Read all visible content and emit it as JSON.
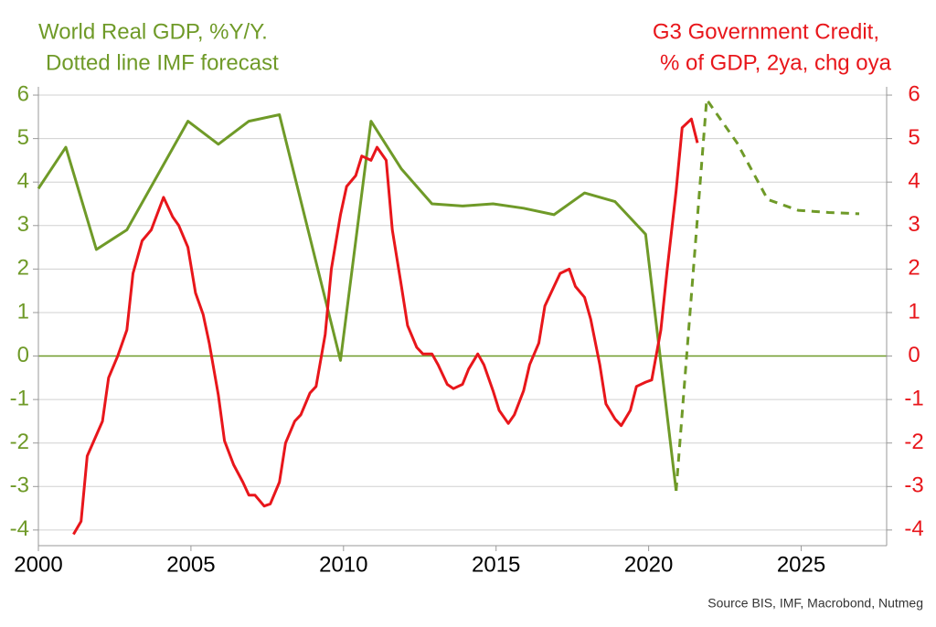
{
  "chart_data": {
    "type": "line",
    "y_label": [
      "World Real GDP, %Y/Y.",
      "Dotted line IMF forecast"
    ],
    "y2_label": [
      "G3 Government Credit,",
      "% of GDP, 2ya, chg oya"
    ],
    "source": "Source BIS, IMF, Macrobond, Nutmeg",
    "y_color": "#6f9a28",
    "y2_color": "#e8161b",
    "xlim": [
      2000,
      2027.8
    ],
    "xticks": [
      2000,
      2005,
      2010,
      2015,
      2020,
      2025
    ],
    "ylim": [
      -4.36,
      6.19
    ],
    "yticks": [
      -4,
      -3,
      -2,
      -1,
      0,
      1,
      2,
      3,
      4,
      5,
      6
    ],
    "y2lim": [
      -4.36,
      6.19
    ],
    "y2ticks": [
      -4,
      -3,
      -2,
      -1,
      0,
      1,
      2,
      3,
      4,
      5,
      6
    ],
    "grid": true,
    "zero_line_color": "#6f9a28",
    "series": [
      {
        "color": "#6f9a28",
        "style": "solid",
        "x": [
          2000,
          2000.9,
          2001.9,
          2002.9,
          2004.9,
          2005.9,
          2006.9,
          2007.9,
          2009.9,
          2010.9,
          2011.9,
          2012.9,
          2013.9,
          2014.9,
          2015.9,
          2016.9,
          2017.9,
          2018.9,
          2019.9,
          2020.9
        ],
        "values": [
          3.85,
          4.8,
          2.45,
          2.9,
          5.4,
          4.87,
          5.4,
          5.55,
          -0.1,
          5.4,
          4.3,
          3.5,
          3.45,
          3.5,
          3.4,
          3.25,
          3.75,
          3.55,
          2.8,
          -3.1
        ]
      },
      {
        "color": "#6f9a28",
        "style": "dashed",
        "x": [
          2020.9,
          2021.9,
          2022.9,
          2023.9,
          2024.9,
          2025.9,
          2026.9
        ],
        "values": [
          -3.1,
          5.9,
          4.9,
          3.6,
          3.35,
          3.3,
          3.27
        ]
      },
      {
        "color": "#e8161b",
        "style": "solid",
        "axis": "y2",
        "x": [
          2001.15,
          2001.4,
          2001.6,
          2002.1,
          2002.3,
          2002.6,
          2002.9,
          2003.1,
          2003.4,
          2003.7,
          2004.1,
          2004.4,
          2004.6,
          2004.9,
          2005.15,
          2005.4,
          2005.6,
          2005.9,
          2006.1,
          2006.4,
          2006.7,
          2006.9,
          2007.1,
          2007.4,
          2007.6,
          2007.9,
          2008.1,
          2008.4,
          2008.6,
          2008.9,
          2009.1,
          2009.4,
          2009.6,
          2009.9,
          2010.1,
          2010.4,
          2010.6,
          2010.9,
          2011.1,
          2011.4,
          2011.6,
          2011.9,
          2012.1,
          2012.4,
          2012.6,
          2012.9,
          2013.1,
          2013.4,
          2013.6,
          2013.9,
          2014.1,
          2014.4,
          2014.6,
          2014.9,
          2015.1,
          2015.4,
          2015.6,
          2015.9,
          2016.1,
          2016.4,
          2016.6,
          2016.9,
          2017.1,
          2017.4,
          2017.6,
          2017.9,
          2018.1,
          2018.4,
          2018.6,
          2018.9,
          2019.1,
          2019.4,
          2019.6,
          2019.9,
          2020.1,
          2020.4,
          2020.6,
          2020.9,
          2021.1,
          2021.4,
          2021.6
        ],
        "values": [
          -4.1,
          -3.8,
          -2.3,
          -1.5,
          -0.5,
          0,
          0.6,
          1.9,
          2.65,
          2.9,
          3.65,
          3.2,
          3.0,
          2.5,
          1.45,
          0.95,
          0.3,
          -0.9,
          -1.95,
          -2.5,
          -2.9,
          -3.2,
          -3.2,
          -3.45,
          -3.4,
          -2.9,
          -2.0,
          -1.5,
          -1.35,
          -0.85,
          -0.7,
          0.5,
          2.0,
          3.25,
          3.9,
          4.15,
          4.6,
          4.5,
          4.8,
          4.5,
          2.9,
          1.6,
          0.7,
          0.2,
          0.05,
          0.05,
          -0.2,
          -0.65,
          -0.75,
          -0.65,
          -0.3,
          0.05,
          -0.2,
          -0.8,
          -1.25,
          -1.55,
          -1.35,
          -0.8,
          -0.2,
          0.3,
          1.15,
          1.6,
          1.9,
          2.0,
          1.6,
          1.35,
          0.85,
          -0.2,
          -1.1,
          -1.45,
          -1.6,
          -1.25,
          -0.7,
          -0.6,
          -0.55,
          0.6,
          1.95,
          3.8,
          5.25,
          5.45,
          4.9
        ]
      }
    ]
  }
}
